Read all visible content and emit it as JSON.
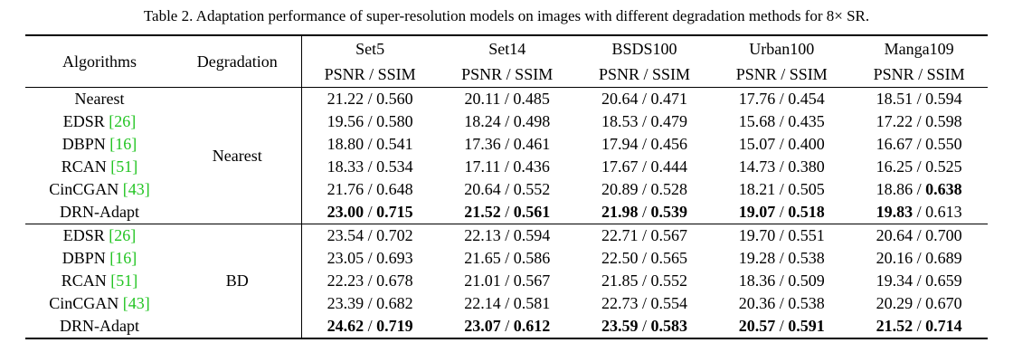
{
  "table": {
    "caption": "Table 2. Adaptation performance of super-resolution models on images with different degradation methods for 8× SR.",
    "header": {
      "algorithms": "Algorithms",
      "degradation": "Degradation",
      "datasets": [
        {
          "name": "Set5",
          "metric": "PSNR / SSIM"
        },
        {
          "name": "Set14",
          "metric": "PSNR / SSIM"
        },
        {
          "name": "BSDS100",
          "metric": "PSNR / SSIM"
        },
        {
          "name": "Urban100",
          "metric": "PSNR / SSIM"
        },
        {
          "name": "Manga109",
          "metric": "PSNR / SSIM"
        }
      ]
    },
    "separator": " / ",
    "groups": [
      {
        "degradation": "Nearest",
        "rows": [
          {
            "algorithm": "Nearest",
            "cells": [
              {
                "psnr": "21.22",
                "ssim": "0.560"
              },
              {
                "psnr": "20.11",
                "ssim": "0.485"
              },
              {
                "psnr": "20.64",
                "ssim": "0.471"
              },
              {
                "psnr": "17.76",
                "ssim": "0.454"
              },
              {
                "psnr": "18.51",
                "ssim": "0.594"
              }
            ]
          },
          {
            "algorithm": "EDSR",
            "cite": "[26]",
            "cells": [
              {
                "psnr": "19.56",
                "ssim": "0.580"
              },
              {
                "psnr": "18.24",
                "ssim": "0.498"
              },
              {
                "psnr": "18.53",
                "ssim": "0.479"
              },
              {
                "psnr": "15.68",
                "ssim": "0.435"
              },
              {
                "psnr": "17.22",
                "ssim": "0.598"
              }
            ]
          },
          {
            "algorithm": "DBPN",
            "cite": "[16]",
            "cells": [
              {
                "psnr": "18.80",
                "ssim": "0.541"
              },
              {
                "psnr": "17.36",
                "ssim": "0.461"
              },
              {
                "psnr": "17.94",
                "ssim": "0.456"
              },
              {
                "psnr": "15.07",
                "ssim": "0.400"
              },
              {
                "psnr": "16.67",
                "ssim": "0.550"
              }
            ]
          },
          {
            "algorithm": "RCAN",
            "cite": "[51]",
            "cells": [
              {
                "psnr": "18.33",
                "ssim": "0.534"
              },
              {
                "psnr": "17.11",
                "ssim": "0.436"
              },
              {
                "psnr": "17.67",
                "ssim": "0.444"
              },
              {
                "psnr": "14.73",
                "ssim": "0.380"
              },
              {
                "psnr": "16.25",
                "ssim": "0.525"
              }
            ]
          },
          {
            "algorithm": "CinCGAN",
            "cite": "[43]",
            "cells": [
              {
                "psnr": "21.76",
                "ssim": "0.648"
              },
              {
                "psnr": "20.64",
                "ssim": "0.552"
              },
              {
                "psnr": "20.89",
                "ssim": "0.528"
              },
              {
                "psnr": "18.21",
                "ssim": "0.505"
              },
              {
                "psnr": "18.86",
                "ssim": "0.638",
                "ssim_bold": true
              }
            ]
          },
          {
            "algorithm": "DRN-Adapt",
            "cells": [
              {
                "psnr": "23.00",
                "ssim": "0.715",
                "psnr_bold": true,
                "ssim_bold": true
              },
              {
                "psnr": "21.52",
                "ssim": "0.561",
                "psnr_bold": true,
                "ssim_bold": true
              },
              {
                "psnr": "21.98",
                "ssim": "0.539",
                "psnr_bold": true,
                "ssim_bold": true
              },
              {
                "psnr": "19.07",
                "ssim": "0.518",
                "psnr_bold": true,
                "ssim_bold": true
              },
              {
                "psnr": "19.83",
                "ssim": "0.613",
                "psnr_bold": true
              }
            ]
          }
        ]
      },
      {
        "degradation": "BD",
        "rows": [
          {
            "algorithm": "EDSR",
            "cite": "[26]",
            "cells": [
              {
                "psnr": "23.54",
                "ssim": "0.702"
              },
              {
                "psnr": "22.13",
                "ssim": "0.594"
              },
              {
                "psnr": "22.71",
                "ssim": "0.567"
              },
              {
                "psnr": "19.70",
                "ssim": "0.551"
              },
              {
                "psnr": "20.64",
                "ssim": "0.700"
              }
            ]
          },
          {
            "algorithm": "DBPN",
            "cite": "[16]",
            "cells": [
              {
                "psnr": "23.05",
                "ssim": "0.693"
              },
              {
                "psnr": "21.65",
                "ssim": "0.586"
              },
              {
                "psnr": "22.50",
                "ssim": "0.565"
              },
              {
                "psnr": "19.28",
                "ssim": "0.538"
              },
              {
                "psnr": "20.16",
                "ssim": "0.689"
              }
            ]
          },
          {
            "algorithm": "RCAN",
            "cite": "[51]",
            "cells": [
              {
                "psnr": "22.23",
                "ssim": "0.678"
              },
              {
                "psnr": "21.01",
                "ssim": "0.567"
              },
              {
                "psnr": "21.85",
                "ssim": "0.552"
              },
              {
                "psnr": "18.36",
                "ssim": "0.509"
              },
              {
                "psnr": "19.34",
                "ssim": "0.659"
              }
            ]
          },
          {
            "algorithm": "CinCGAN",
            "cite": "[43]",
            "cells": [
              {
                "psnr": "23.39",
                "ssim": "0.682"
              },
              {
                "psnr": "22.14",
                "ssim": "0.581"
              },
              {
                "psnr": "22.73",
                "ssim": "0.554"
              },
              {
                "psnr": "20.36",
                "ssim": "0.538"
              },
              {
                "psnr": "20.29",
                "ssim": "0.670"
              }
            ]
          },
          {
            "algorithm": "DRN-Adapt",
            "cells": [
              {
                "psnr": "24.62",
                "ssim": "0.719",
                "psnr_bold": true,
                "ssim_bold": true
              },
              {
                "psnr": "23.07",
                "ssim": "0.612",
                "psnr_bold": true,
                "ssim_bold": true
              },
              {
                "psnr": "23.59",
                "ssim": "0.583",
                "psnr_bold": true,
                "ssim_bold": true
              },
              {
                "psnr": "20.57",
                "ssim": "0.591",
                "psnr_bold": true,
                "ssim_bold": true
              },
              {
                "psnr": "21.52",
                "ssim": "0.714",
                "psnr_bold": true,
                "ssim_bold": true
              }
            ]
          }
        ]
      }
    ]
  }
}
